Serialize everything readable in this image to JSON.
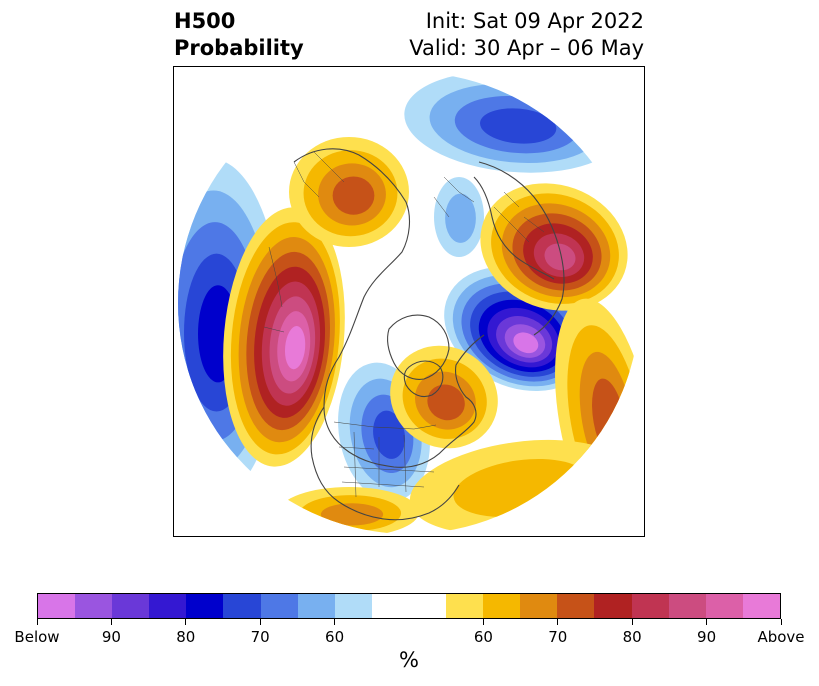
{
  "header": {
    "field": "H500",
    "product": "Probability",
    "init": "Init: Sat 09 Apr 2022",
    "valid": "Valid: 30 Apr – 06 May"
  },
  "map": {
    "projection": "north-polar-stereographic",
    "basemap": [
      "coastlines",
      "country-borders",
      "state-provinces"
    ],
    "features": [
      {
        "name": "below-center-atlantic-europe",
        "category": "Below",
        "peak": "Below"
      },
      {
        "name": "below-west-pacific",
        "category": "Below",
        "peak": "90"
      },
      {
        "name": "below-north-america",
        "category": "Below",
        "peak": "60"
      },
      {
        "name": "above-northeast-pacific-alaska",
        "category": "Above",
        "peak": "Above"
      },
      {
        "name": "above-siberia",
        "category": "Above",
        "peak": "90"
      },
      {
        "name": "above-greenland-north-atlantic",
        "category": "Above",
        "peak": "70"
      }
    ]
  },
  "colorbar": {
    "units": "%",
    "labels": [
      "Below",
      "90",
      "80",
      "70",
      "60",
      "60",
      "70",
      "80",
      "90",
      "Above"
    ],
    "below_colors": [
      "#d875e8",
      "#9a55e0",
      "#6a38d8",
      "#3418d2",
      "#0000cc",
      "#2846d6",
      "#4e78e6",
      "#78b0f0",
      "#b0dcf8"
    ],
    "neutral_color": "#ffffff",
    "above_colors": [
      "#fee04e",
      "#f5b800",
      "#e08a10",
      "#c65218",
      "#b02222",
      "#c03452",
      "#cc4c80",
      "#dc60a8",
      "#e87ad8"
    ]
  }
}
